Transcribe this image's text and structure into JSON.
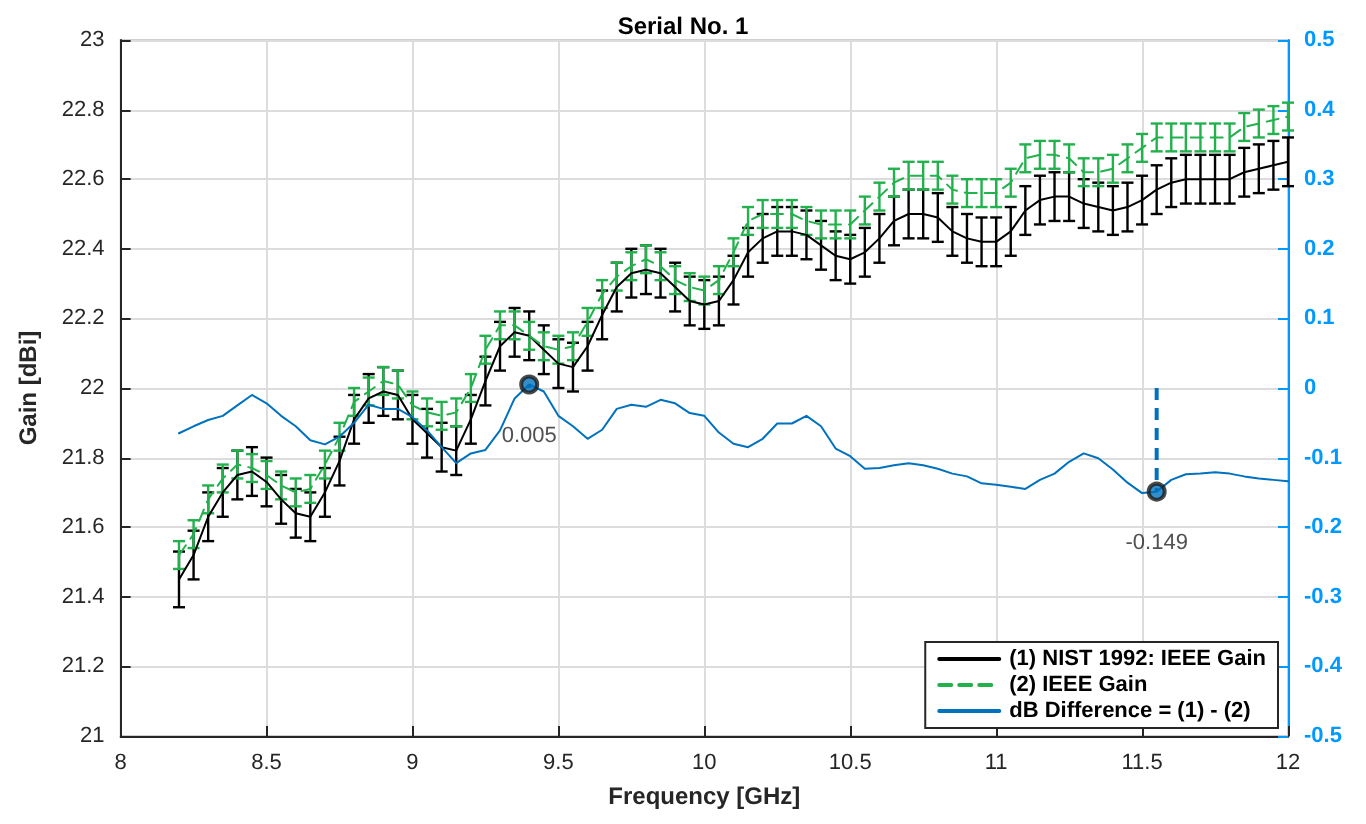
{
  "chart_data": {
    "type": "line",
    "title": "Serial No. 1",
    "xlabel": "Frequency [GHz]",
    "ylabel": "Gain [dBi]",
    "xlim": [
      8,
      12
    ],
    "xticks": [
      8,
      8.5,
      9,
      9.5,
      10,
      10.5,
      11,
      11.5,
      12
    ],
    "ylim": [
      21,
      23
    ],
    "yticks": [
      21,
      21.2,
      21.4,
      21.6,
      21.8,
      22,
      22.2,
      22.4,
      22.6,
      22.8,
      23
    ],
    "y2lim": [
      -0.5,
      0.5
    ],
    "y2ticks": [
      -0.5,
      -0.4,
      -0.3,
      -0.2,
      -0.1,
      0,
      0.1,
      0.2,
      0.3,
      0.4,
      0.5
    ],
    "grid": true,
    "legend": "bottom right",
    "x": [
      8.2,
      8.25,
      8.3,
      8.35,
      8.4,
      8.45,
      8.5,
      8.55,
      8.6,
      8.65,
      8.7,
      8.75,
      8.8,
      8.85,
      8.9,
      8.95,
      9,
      9.05,
      9.1,
      9.15,
      9.2,
      9.25,
      9.3,
      9.35,
      9.4,
      9.45,
      9.5,
      9.55,
      9.6,
      9.65,
      9.7,
      9.75,
      9.8,
      9.85,
      9.9,
      9.95,
      10,
      10.05,
      10.1,
      10.15,
      10.2,
      10.25,
      10.3,
      10.35,
      10.4,
      10.45,
      10.5,
      10.55,
      10.6,
      10.65,
      10.7,
      10.75,
      10.8,
      10.85,
      10.9,
      10.95,
      11,
      11.05,
      11.1,
      11.15,
      11.2,
      11.25,
      11.3,
      11.35,
      11.4,
      11.45,
      11.5,
      11.55,
      11.6,
      11.65,
      11.7,
      11.75,
      11.8,
      11.85,
      11.9,
      11.95,
      12
    ],
    "series": [
      {
        "name": "(1) NIST 1992: IEEE Gain",
        "color": "#000000",
        "line_style": "solid",
        "values": [
          21.45,
          21.52,
          21.63,
          21.7,
          21.75,
          21.76,
          21.73,
          21.68,
          21.64,
          21.63,
          21.7,
          21.79,
          21.91,
          21.97,
          21.99,
          21.98,
          21.91,
          21.87,
          21.83,
          21.82,
          21.91,
          22.02,
          22.12,
          22.16,
          22.15,
          22.11,
          22.07,
          22.06,
          22.12,
          22.21,
          22.29,
          22.33,
          22.34,
          22.33,
          22.29,
          22.25,
          22.24,
          22.25,
          22.31,
          22.39,
          22.43,
          22.45,
          22.45,
          22.44,
          22.41,
          22.38,
          22.37,
          22.39,
          22.43,
          22.48,
          22.5,
          22.5,
          22.49,
          22.45,
          22.43,
          22.42,
          22.42,
          22.45,
          22.51,
          22.54,
          22.55,
          22.55,
          22.53,
          22.52,
          22.51,
          22.52,
          22.54,
          22.57,
          22.59,
          22.6,
          22.6,
          22.6,
          22.6,
          22.62,
          22.63,
          22.64,
          22.65
        ],
        "errors": [
          0.08,
          0.07,
          0.07,
          0.07,
          0.07,
          0.07,
          0.07,
          0.07,
          0.07,
          0.07,
          0.07,
          0.07,
          0.07,
          0.07,
          0.07,
          0.07,
          0.07,
          0.07,
          0.07,
          0.07,
          0.07,
          0.07,
          0.07,
          0.07,
          0.07,
          0.07,
          0.07,
          0.07,
          0.07,
          0.07,
          0.07,
          0.07,
          0.07,
          0.07,
          0.07,
          0.07,
          0.07,
          0.07,
          0.07,
          0.07,
          0.07,
          0.07,
          0.07,
          0.07,
          0.07,
          0.07,
          0.07,
          0.07,
          0.07,
          0.07,
          0.07,
          0.07,
          0.07,
          0.07,
          0.07,
          0.07,
          0.07,
          0.07,
          0.07,
          0.07,
          0.07,
          0.07,
          0.07,
          0.07,
          0.07,
          0.07,
          0.07,
          0.07,
          0.07,
          0.07,
          0.07,
          0.07,
          0.07,
          0.07,
          0.07,
          0.07,
          0.07
        ]
      },
      {
        "name": "(2) IEEE Gain",
        "color": "#22b14c",
        "line_style": "dashed",
        "values": [
          21.52,
          21.58,
          21.68,
          21.74,
          21.78,
          21.77,
          21.75,
          21.72,
          21.7,
          21.71,
          21.78,
          21.86,
          21.96,
          21.99,
          22.02,
          22.01,
          21.95,
          21.93,
          21.92,
          21.93,
          22.0,
          22.11,
          22.18,
          22.18,
          22.15,
          22.12,
          22.11,
          22.12,
          22.19,
          22.27,
          22.32,
          22.35,
          22.37,
          22.35,
          22.31,
          22.29,
          22.28,
          22.31,
          22.39,
          22.48,
          22.5,
          22.5,
          22.5,
          22.48,
          22.47,
          22.47,
          22.47,
          22.51,
          22.55,
          22.59,
          22.61,
          22.61,
          22.61,
          22.57,
          22.56,
          22.56,
          22.56,
          22.59,
          22.66,
          22.67,
          22.67,
          22.66,
          22.62,
          22.62,
          22.63,
          22.66,
          22.69,
          22.72,
          22.72,
          22.72,
          22.72,
          22.72,
          22.72,
          22.75,
          22.76,
          22.77,
          22.78
        ],
        "errors": [
          0.04,
          0.04,
          0.04,
          0.04,
          0.04,
          0.04,
          0.04,
          0.04,
          0.04,
          0.04,
          0.04,
          0.04,
          0.04,
          0.04,
          0.04,
          0.04,
          0.04,
          0.04,
          0.04,
          0.04,
          0.04,
          0.04,
          0.04,
          0.04,
          0.04,
          0.04,
          0.04,
          0.04,
          0.04,
          0.04,
          0.04,
          0.04,
          0.04,
          0.04,
          0.04,
          0.04,
          0.04,
          0.04,
          0.04,
          0.04,
          0.04,
          0.04,
          0.04,
          0.04,
          0.04,
          0.04,
          0.04,
          0.04,
          0.04,
          0.04,
          0.04,
          0.04,
          0.04,
          0.04,
          0.04,
          0.04,
          0.04,
          0.04,
          0.04,
          0.04,
          0.04,
          0.04,
          0.04,
          0.04,
          0.04,
          0.04,
          0.04,
          0.04,
          0.04,
          0.04,
          0.04,
          0.04,
          0.04,
          0.04,
          0.04,
          0.04,
          0.04
        ]
      },
      {
        "name": "dB Difference = (1) - (2)",
        "color": "#0072bd",
        "line_style": "solid",
        "axis": "y2",
        "values": [
          -0.065,
          -0.055,
          -0.046,
          -0.04,
          -0.025,
          -0.01,
          -0.022,
          -0.04,
          -0.055,
          -0.075,
          -0.081,
          -0.07,
          -0.05,
          -0.024,
          -0.03,
          -0.03,
          -0.042,
          -0.061,
          -0.085,
          -0.108,
          -0.094,
          -0.089,
          -0.061,
          -0.015,
          0.005,
          -0.005,
          -0.04,
          -0.055,
          -0.073,
          -0.06,
          -0.03,
          -0.024,
          -0.027,
          -0.017,
          -0.022,
          -0.036,
          -0.04,
          -0.064,
          -0.08,
          -0.085,
          -0.073,
          -0.051,
          -0.051,
          -0.04,
          -0.055,
          -0.087,
          -0.098,
          -0.116,
          -0.115,
          -0.111,
          -0.108,
          -0.111,
          -0.116,
          -0.123,
          -0.127,
          -0.137,
          -0.139,
          -0.142,
          -0.145,
          -0.132,
          -0.123,
          -0.106,
          -0.094,
          -0.101,
          -0.117,
          -0.136,
          -0.151,
          -0.149,
          -0.132,
          -0.124,
          -0.123,
          -0.121,
          -0.123,
          -0.127,
          -0.13,
          -0.132,
          -0.134
        ]
      },
      {
        "type": "lollipop",
        "color": "#0072bd",
        "line_style": "dashed",
        "marker": "circle",
        "axis": "y2",
        "x": [
          9.4,
          11.55
        ],
        "values": [
          0.005,
          -0.149
        ],
        "value_labels": [
          "0.005",
          "-0.149"
        ]
      }
    ]
  }
}
